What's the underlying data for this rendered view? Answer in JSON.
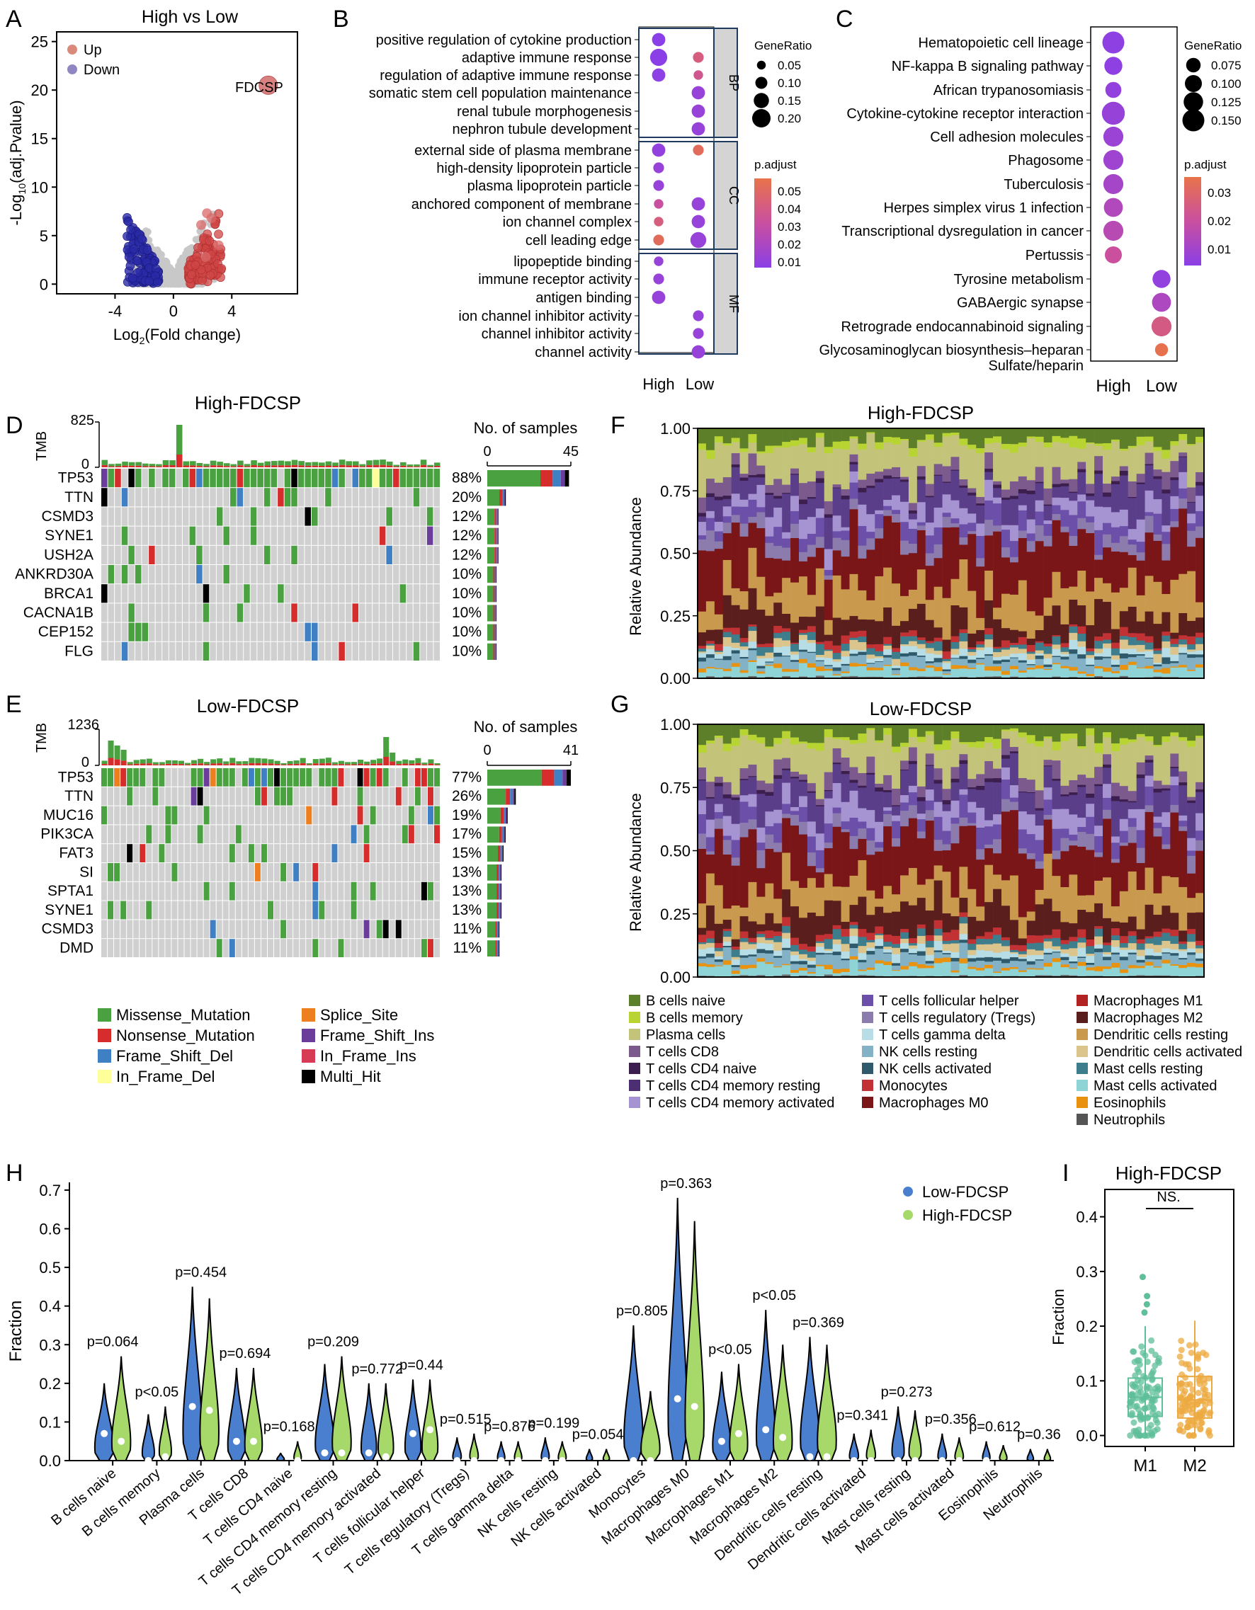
{
  "colors": {
    "up": "#cc4444",
    "down": "#1a1aa0",
    "ns": "#bbbbbb",
    "low": "#4a7fd0",
    "high": "#a6d96a",
    "missense": "#4aa140",
    "nonsense": "#d62c2c",
    "fs_del": "#3f7fc4",
    "in_del": "#ffff99",
    "splice": "#ee7f1e",
    "fs_ins": "#6a3d9a",
    "in_ins": "#d63a55",
    "multi": "#000000",
    "m1box": "#5fbf9a",
    "m2box": "#eca940"
  },
  "panels": {
    "A": "A",
    "B": "B",
    "C": "C",
    "D": "D",
    "E": "E",
    "F": "F",
    "G": "G",
    "H": "H",
    "I": "I"
  },
  "volcano": {
    "title": "High vs Low",
    "legend_up": "Up",
    "legend_down": "Down",
    "gene_label": "FDCSP",
    "ylabel_pre": "-Log",
    "ylabel_sub": "10",
    "ylabel_post": "(adj.Pvalue)",
    "xlabel_pre": "Log",
    "xlabel_sub": "2",
    "xlabel_post": "(Fold change)",
    "xticks": [
      "-4",
      "0",
      "4"
    ],
    "yticks": [
      "0",
      "5",
      "10",
      "15",
      "20",
      "25"
    ],
    "chart_data": {
      "type": "scatter",
      "highlight": {
        "gene": "FDCSP",
        "log2fc": 6.5,
        "neglog10p": 20.5
      },
      "xlim": [
        -8,
        8.5
      ],
      "ylim": [
        -1,
        26
      ]
    }
  },
  "go": {
    "terms": [
      "positive regulation of cytokine production",
      "adaptive immune response",
      "regulation of adaptive immune response",
      "somatic stem cell population maintenance",
      "renal tubule morphogenesis",
      "nephron tubule development",
      "external side of plasma membrane",
      "high-density lipoprotein particle",
      "plasma lipoprotein particle",
      "anchored component of membrane",
      "ion channel complex",
      "cell leading edge",
      "lipopeptide binding",
      "immune receptor activity",
      "antigen binding",
      "ion channel inhibitor activity",
      "channel inhibitor activity",
      "channel activity"
    ],
    "groups": [
      "BP",
      "CC",
      "MF"
    ],
    "xlabels": [
      "High",
      "Low"
    ],
    "legend_size_title": "GeneRatio",
    "legend_size": [
      "0.05",
      "0.10",
      "0.15",
      "0.20"
    ],
    "legend_color_title": "p.adjust",
    "legend_color": [
      "0.05",
      "0.04",
      "0.03",
      "0.02",
      "0.01"
    ],
    "chart_data": {
      "type": "dotplot",
      "high": [
        [
          0,
          0.12,
          0.005
        ],
        [
          1,
          0.18,
          0.005
        ],
        [
          2,
          0.12,
          0.006
        ],
        [
          6,
          0.12,
          0.008
        ],
        [
          7,
          0.08,
          0.01
        ],
        [
          8,
          0.08,
          0.01
        ],
        [
          9,
          0.06,
          0.03
        ],
        [
          10,
          0.06,
          0.04
        ],
        [
          11,
          0.08,
          0.05
        ],
        [
          12,
          0.06,
          0.01
        ],
        [
          13,
          0.08,
          0.01
        ],
        [
          14,
          0.12,
          0.01
        ]
      ],
      "low": [
        [
          1,
          0.08,
          0.04
        ],
        [
          2,
          0.06,
          0.035
        ],
        [
          3,
          0.12,
          0.01
        ],
        [
          4,
          0.12,
          0.01
        ],
        [
          5,
          0.12,
          0.01
        ],
        [
          6,
          0.08,
          0.05
        ],
        [
          9,
          0.12,
          0.01
        ],
        [
          10,
          0.12,
          0.01
        ],
        [
          11,
          0.16,
          0.01
        ],
        [
          15,
          0.08,
          0.01
        ],
        [
          16,
          0.08,
          0.01
        ],
        [
          17,
          0.12,
          0.01
        ]
      ]
    }
  },
  "kegg": {
    "terms": [
      "Hematopoietic cell lineage",
      "NF-kappa B signaling pathway",
      "African trypanosomiasis",
      "Cytokine-cytokine receptor interaction",
      "Cell adhesion molecules",
      "Phagosome",
      "Tuberculosis",
      "Herpes simplex virus 1 infection",
      "Transcriptional dysregulation in cancer",
      "Pertussis",
      "Tyrosine metabolism",
      "GABAergic synapse",
      "Retrograde endocannabinoid signaling",
      "Glycosaminoglycan biosynthesis–heparan",
      "Sulfate/heparin"
    ],
    "xlabels": [
      "High",
      "Low"
    ],
    "legend_size_title": "GeneRatio",
    "legend_size": [
      "0.075",
      "0.100",
      "0.125",
      "0.150"
    ],
    "legend_color_title": "p.adjust",
    "legend_color": [
      "0.03",
      "0.02",
      "0.01"
    ],
    "chart_data": {
      "type": "dotplot",
      "high": [
        [
          0,
          0.15,
          0.004
        ],
        [
          1,
          0.11,
          0.004
        ],
        [
          2,
          0.09,
          0.005
        ],
        [
          3,
          0.16,
          0.006
        ],
        [
          4,
          0.13,
          0.007
        ],
        [
          5,
          0.13,
          0.008
        ],
        [
          6,
          0.13,
          0.01
        ],
        [
          7,
          0.12,
          0.013
        ],
        [
          8,
          0.13,
          0.015
        ],
        [
          9,
          0.1,
          0.02
        ]
      ],
      "low": [
        [
          10,
          0.11,
          0.005
        ],
        [
          11,
          0.12,
          0.012
        ],
        [
          12,
          0.13,
          0.025
        ],
        [
          13,
          0.06,
          0.035
        ]
      ]
    }
  },
  "oncoD": {
    "title": "High-FDCSP",
    "tmb_label": "TMB",
    "tmb_max": "825",
    "tmb_min": "0",
    "samples_title": "No. of samples",
    "samples_min": "0",
    "samples_max": "45",
    "genes": [
      "TP53",
      "TTN",
      "CSMD3",
      "SYNE1",
      "USH2A",
      "ANKRD30A",
      "BRCA1",
      "CACNA1B",
      "CEP152",
      "FLG"
    ],
    "pcts": [
      "88%",
      "20%",
      "12%",
      "12%",
      "12%",
      "10%",
      "10%",
      "10%",
      "10%",
      "10%"
    ],
    "chart_data": {
      "type": "oncoplot",
      "n_samples": 50,
      "max_count": 45,
      "counts": [
        44,
        10,
        6,
        6,
        6,
        5,
        5,
        5,
        5,
        5
      ]
    }
  },
  "oncoE": {
    "title": "Low-FDCSP",
    "tmb_label": "TMB",
    "tmb_max": "1236",
    "tmb_min": "0",
    "samples_title": "No. of samples",
    "samples_min": "0",
    "samples_max": "41",
    "genes": [
      "TP53",
      "TTN",
      "MUC16",
      "PIK3CA",
      "FAT3",
      "SI",
      "SPTA1",
      "SYNE1",
      "CSMD3",
      "DMD"
    ],
    "pcts": [
      "77%",
      "26%",
      "19%",
      "17%",
      "15%",
      "13%",
      "13%",
      "13%",
      "11%",
      "11%"
    ],
    "chart_data": {
      "type": "oncoplot",
      "n_samples": 53,
      "max_count": 41,
      "counts": [
        41,
        14,
        10,
        9,
        8,
        7,
        7,
        7,
        6,
        6
      ]
    }
  },
  "mut_legend": [
    "Missense_Mutation",
    "Nonsense_Mutation",
    "Frame_Shift_Del",
    "In_Frame_Del",
    "Splice_Site",
    "Frame_Shift_Ins",
    "In_Frame_Ins",
    "Multi_Hit"
  ],
  "abundF": {
    "title": "High-FDCSP",
    "ylabel": "Relative Abundance",
    "yticks": [
      "0.00",
      "0.25",
      "0.50",
      "0.75",
      "1.00"
    ],
    "chart_data": {
      "type": "stacked-bar",
      "n_samples": 60
    }
  },
  "abundG": {
    "title": "Low-FDCSP",
    "ylabel": "Relative Abundance",
    "yticks": [
      "0.00",
      "0.25",
      "0.50",
      "0.75",
      "1.00"
    ],
    "chart_data": {
      "type": "stacked-bar",
      "n_samples": 60
    }
  },
  "cells": [
    "B cells naive",
    "B cells memory",
    "Plasma cells",
    "T cells CD8",
    "T cells CD4 naive",
    "T cells CD4 memory resting",
    "T cells CD4 memory activated",
    "T cells follicular helper",
    "T cells regulatory (Tregs)",
    "T cells gamma delta",
    "NK cells resting",
    "NK cells activated",
    "Monocytes",
    "Macrophages M0",
    "Macrophages M1",
    "Macrophages M2",
    "Dendritic cells resting",
    "Dendritic cells activated",
    "Mast cells resting",
    "Mast cells activated",
    "Eosinophils",
    "Neutrophils"
  ],
  "cell_colors": [
    "#5e7f2a",
    "#b8d433",
    "#c3c47a",
    "#7c5a8e",
    "#3c1f4e",
    "#5a3e8a",
    "#a693d2",
    "#6b4fa8",
    "#8c7cae",
    "#b7dde6",
    "#83b2c6",
    "#2f5a6c",
    "#c23234",
    "#7a1618",
    "#5a1f1c",
    "#c99a4e",
    "#dcc58c",
    "#3d7d8c",
    "#8ed3d6",
    "#e8920f",
    "#6b6b6b",
    "#5e7f2a"
  ],
  "violin": {
    "ylabel": "Fraction",
    "yticks": [
      "0.0",
      "0.1",
      "0.2",
      "0.3",
      "0.4",
      "0.5",
      "0.6",
      "0.7"
    ],
    "legend_low": "Low-FDCSP",
    "legend_high": "High-FDCSP",
    "pvals": [
      "p=0.064",
      "p<0.05",
      "p=0.454",
      "p=0.694",
      "p=0.168",
      "p=0.209",
      "p=0.772",
      "p=0.44",
      "p=0.515",
      "p=0.876",
      "p=0.199",
      "p=0.054",
      "p=0.805",
      "p=0.363",
      "p<0.05",
      "p<0.05",
      "p=0.369",
      "p=0.341",
      "p=0.273",
      "p=0.356",
      "p=0.612",
      "p=0.36"
    ],
    "chart_data": {
      "type": "violin",
      "max_low": [
        0.2,
        0.12,
        0.45,
        0.24,
        0.02,
        0.25,
        0.2,
        0.21,
        0.06,
        0.05,
        0.06,
        0.03,
        0.35,
        0.68,
        0.23,
        0.39,
        0.32,
        0.07,
        0.14,
        0.07,
        0.05,
        0.03
      ],
      "max_high": [
        0.27,
        0.14,
        0.42,
        0.24,
        0.05,
        0.27,
        0.2,
        0.21,
        0.07,
        0.05,
        0.05,
        0.03,
        0.18,
        0.62,
        0.25,
        0.3,
        0.3,
        0.08,
        0.13,
        0.06,
        0.04,
        0.03
      ],
      "median_low": [
        0.07,
        0.0,
        0.14,
        0.05,
        0.0,
        0.02,
        0.02,
        0.07,
        0.0,
        0.0,
        0.0,
        0.0,
        0.0,
        0.16,
        0.05,
        0.08,
        0.01,
        0.0,
        0.0,
        0.0,
        0.0,
        0.0
      ],
      "median_high": [
        0.05,
        0.01,
        0.13,
        0.05,
        0.0,
        0.02,
        0.01,
        0.08,
        0.0,
        0.0,
        0.0,
        0.0,
        0.0,
        0.14,
        0.07,
        0.06,
        0.01,
        0.0,
        0.0,
        0.0,
        0.0,
        0.0
      ]
    }
  },
  "boxI": {
    "title": "High-FDCSP",
    "ylabel": "Fraction",
    "sig": "NS.",
    "xticks": [
      "M1",
      "M2"
    ],
    "yticks": [
      "0.0",
      "0.1",
      "0.2",
      "0.3",
      "0.4"
    ],
    "chart_data": {
      "type": "box",
      "groups": [
        "M1",
        "M2"
      ],
      "q1": [
        0.035,
        0.032
      ],
      "median": [
        0.07,
        0.065
      ],
      "q3": [
        0.105,
        0.108
      ],
      "whisker_low": [
        0.0,
        0.0
      ],
      "whisker_high": [
        0.2,
        0.21
      ],
      "outliers": [
        [
          0.29,
          0.255,
          0.24,
          0.225
        ],
        []
      ],
      "ylim": [
        -0.02,
        0.45
      ]
    }
  }
}
